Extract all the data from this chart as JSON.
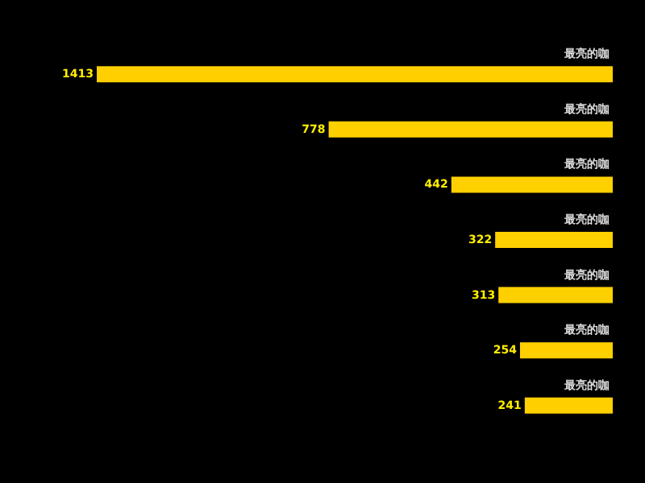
{
  "chart_data": {
    "type": "bar",
    "orientation": "horizontal",
    "categories": [
      "最亮的咖",
      "最亮的咖",
      "最亮的咖",
      "最亮的咖",
      "最亮的咖",
      "最亮的咖",
      "最亮的咖"
    ],
    "values": [
      1413,
      778,
      442,
      322,
      313,
      254,
      241
    ],
    "color": "#ffd000",
    "data_labels": true,
    "tick_labels": "y",
    "grid": false
  }
}
